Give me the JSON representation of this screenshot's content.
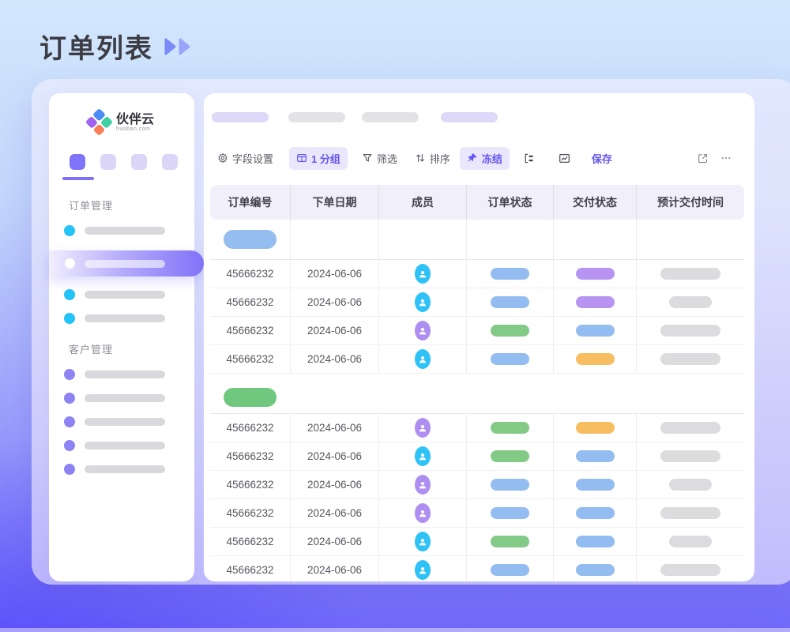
{
  "page_title": "订单列表",
  "logo": {
    "name": "伙伴云",
    "domain": "huoban.com"
  },
  "sidebar": {
    "sections": [
      {
        "label": "订单管理",
        "items": [
          {
            "dot": "cyan",
            "selected": false
          },
          {
            "dot": "white",
            "selected": true
          },
          {
            "dot": "cyan",
            "selected": false
          },
          {
            "dot": "cyan",
            "selected": false
          }
        ]
      },
      {
        "label": "客户管理",
        "items": [
          {
            "dot": "purple",
            "selected": false
          },
          {
            "dot": "purple",
            "selected": false
          },
          {
            "dot": "purple",
            "selected": false
          },
          {
            "dot": "purple",
            "selected": false
          },
          {
            "dot": "purple",
            "selected": false
          }
        ]
      }
    ]
  },
  "tabs": [
    {
      "tone": "lavender"
    },
    {
      "tone": "gray"
    },
    {
      "tone": "gray"
    },
    {
      "tone": "lavender"
    }
  ],
  "toolbar": {
    "field_settings": "字段设置",
    "group": "1 分组",
    "filter": "筛选",
    "sort": "排序",
    "freeze": "冻结",
    "save": "保存"
  },
  "table": {
    "columns": [
      "订单编号",
      "下单日期",
      "成员",
      "订单状态",
      "交付状态",
      "预计交付时间"
    ],
    "groups": [
      {
        "color": "blue",
        "dividers": true,
        "rows": [
          {
            "order_no": "45666232",
            "date": "2024-06-06",
            "avatar": "cyan",
            "order_status": "blue",
            "delivery_status": "purple",
            "eta": "long"
          },
          {
            "order_no": "45666232",
            "date": "2024-06-06",
            "avatar": "cyan",
            "order_status": "blue",
            "delivery_status": "purple",
            "eta": "short"
          },
          {
            "order_no": "45666232",
            "date": "2024-06-06",
            "avatar": "purple",
            "order_status": "green",
            "delivery_status": "blue",
            "eta": "long"
          },
          {
            "order_no": "45666232",
            "date": "2024-06-06",
            "avatar": "cyan",
            "order_status": "blue",
            "delivery_status": "orange",
            "eta": "long"
          }
        ]
      },
      {
        "color": "green",
        "dividers": false,
        "rows": [
          {
            "order_no": "45666232",
            "date": "2024-06-06",
            "avatar": "purple",
            "order_status": "green",
            "delivery_status": "orange",
            "eta": "long"
          },
          {
            "order_no": "45666232",
            "date": "2024-06-06",
            "avatar": "cyan",
            "order_status": "green",
            "delivery_status": "blue",
            "eta": "long"
          },
          {
            "order_no": "45666232",
            "date": "2024-06-06",
            "avatar": "purple",
            "order_status": "blue",
            "delivery_status": "blue",
            "eta": "short"
          },
          {
            "order_no": "45666232",
            "date": "2024-06-06",
            "avatar": "purple",
            "order_status": "blue",
            "delivery_status": "blue",
            "eta": "long"
          },
          {
            "order_no": "45666232",
            "date": "2024-06-06",
            "avatar": "cyan",
            "order_status": "green",
            "delivery_status": "blue",
            "eta": "short"
          },
          {
            "order_no": "45666232",
            "date": "2024-06-06",
            "avatar": "cyan",
            "order_status": "blue",
            "delivery_status": "blue",
            "eta": "long"
          }
        ]
      }
    ]
  },
  "colors": {
    "accent": "#6456f0",
    "title_arrow_dark": "#7c8bf8",
    "title_arrow_light": "#97a6fa",
    "avatar": {
      "cyan": "#2ec2f6",
      "purple": "#ae8ff1"
    },
    "status": {
      "blue": "#93bcf0",
      "green": "#82ca85",
      "purple": "#b794f2",
      "orange": "#f6bd61"
    },
    "group": {
      "blue": "#94bdf0",
      "green": "#6fc87e"
    },
    "dot": {
      "cyan": "#23c3f7",
      "purple": "#8d83f2",
      "white": "#ffffff"
    },
    "logo_diamond": {
      "top": "#4a8df6",
      "right": "#3fcfa4",
      "bottom": "#f87e5a",
      "left": "#a263f2"
    }
  }
}
